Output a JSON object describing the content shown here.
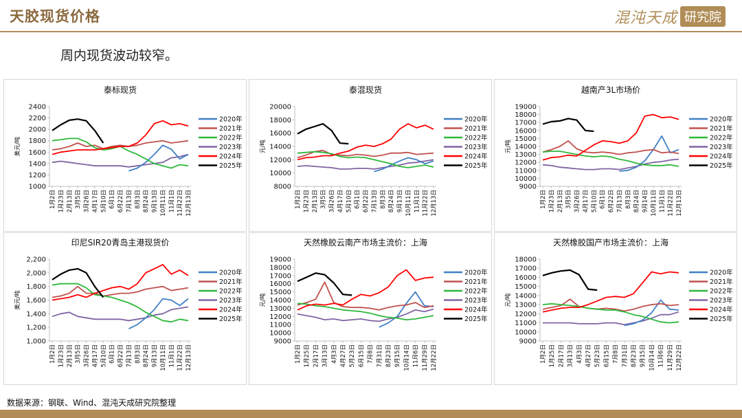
{
  "header": {
    "title": "天胶现货价格",
    "logo_script": "混沌天成",
    "logo_box": "研究院"
  },
  "subtitle": "周内现货波动较窄。",
  "source": "数据来源：钢联、Wind、混沌天成研究院整理",
  "colors": {
    "gold": "#b08d57",
    "2020": "#3f7fc4",
    "2021": "#c0504d",
    "2022": "#2db83a",
    "2023": "#8064a2",
    "2024": "#ff0000",
    "2025": "#000000"
  },
  "chart_data": [
    {
      "type": "line",
      "title": "泰标现货",
      "ylabel": "美元/吨",
      "ylim": [
        1000,
        2400
      ],
      "yticks": [
        "1000",
        "1200",
        "1400",
        "1600",
        "1800",
        "2000",
        "2200",
        "2400"
      ],
      "categories": [
        "1月2日",
        "1月23日",
        "2月13日",
        "3月5日",
        "3月26日",
        "4月17日",
        "5月10日",
        "6月1日",
        "6月22日",
        "7月13日",
        "8月3日",
        "8月24日",
        "9月13日",
        "10月11日",
        "11月1日",
        "11月22日",
        "12月13日"
      ],
      "series": [
        {
          "name": "2020年",
          "values": [
            null,
            null,
            null,
            null,
            null,
            null,
            null,
            null,
            null,
            1270,
            1320,
            1420,
            1560,
            1720,
            1650,
            1480,
            1560
          ]
        },
        {
          "name": "2021年",
          "values": [
            1640,
            1660,
            1700,
            1760,
            1700,
            1720,
            1660,
            1700,
            1720,
            1700,
            1720,
            1760,
            1780,
            1800,
            1760,
            1780,
            1800
          ]
        },
        {
          "name": "2022年",
          "values": [
            1800,
            1820,
            1840,
            1840,
            1780,
            1680,
            1640,
            1660,
            1700,
            1620,
            1560,
            1480,
            1400,
            1360,
            1320,
            1380,
            1360
          ]
        },
        {
          "name": "2023年",
          "values": [
            1420,
            1440,
            1420,
            1400,
            1380,
            1360,
            1360,
            1360,
            1360,
            1340,
            1360,
            1380,
            1400,
            1420,
            1500,
            1520,
            1560
          ]
        },
        {
          "name": "2024年",
          "values": [
            1560,
            1600,
            1620,
            1640,
            1640,
            1640,
            1660,
            1680,
            1700,
            1700,
            1760,
            1900,
            2100,
            2150,
            2080,
            2100,
            2060
          ]
        },
        {
          "name": "2025年",
          "values": [
            1980,
            2080,
            2160,
            2180,
            2150,
            1980,
            1760,
            null,
            null,
            null,
            null,
            null,
            null,
            null,
            null,
            null,
            null
          ]
        }
      ]
    },
    {
      "type": "line",
      "title": "泰混现货",
      "ylabel": "元/吨",
      "ylim": [
        8000,
        20000
      ],
      "yticks": [
        "8000",
        "10000",
        "12000",
        "14000",
        "16000",
        "18000",
        "20000"
      ],
      "categories": [
        "1月2日",
        "1月23日",
        "2月13日",
        "3月5日",
        "3月26日",
        "4月17日",
        "5月10日",
        "6月1日",
        "6月22日",
        "7月13日",
        "8月3日",
        "8月24日",
        "9月13日",
        "10月11日",
        "11月1日",
        "11月22日",
        "12月13日"
      ],
      "series": [
        {
          "name": "2020年",
          "values": [
            null,
            null,
            null,
            null,
            null,
            null,
            null,
            null,
            null,
            10200,
            10600,
            11200,
            11800,
            12300,
            12000,
            11400,
            11800
          ]
        },
        {
          "name": "2021年",
          "values": [
            12300,
            12700,
            13200,
            13400,
            12800,
            12700,
            12600,
            12800,
            12700,
            12500,
            12700,
            13000,
            13000,
            13100,
            12800,
            12900,
            13000
          ]
        },
        {
          "name": "2022年",
          "values": [
            13000,
            13100,
            13200,
            13100,
            12900,
            12500,
            12300,
            12400,
            12300,
            12000,
            11700,
            11400,
            11000,
            10800,
            11000,
            11200,
            10900
          ]
        },
        {
          "name": "2023年",
          "values": [
            11000,
            11100,
            11000,
            10900,
            10800,
            10600,
            10600,
            10700,
            10700,
            10600,
            10800,
            11000,
            11200,
            11500,
            11600,
            11800,
            12000
          ]
        },
        {
          "name": "2024年",
          "values": [
            12000,
            12300,
            12400,
            12600,
            12600,
            13000,
            13300,
            13900,
            14200,
            14000,
            14400,
            15100,
            16600,
            17400,
            16800,
            17200,
            16600
          ]
        },
        {
          "name": "2025年",
          "values": [
            15900,
            16600,
            17000,
            17400,
            16400,
            14500,
            14400,
            null,
            null,
            null,
            null,
            null,
            null,
            null,
            null,
            null,
            null
          ]
        }
      ]
    },
    {
      "type": "line",
      "title": "越南产3L市场价",
      "ylabel": "元/吨",
      "ylim": [
        9000,
        19000
      ],
      "yticks": [
        "9000",
        "10000",
        "11000",
        "12000",
        "13000",
        "14000",
        "15000",
        "16000",
        "17000",
        "18000",
        "19000"
      ],
      "categories": [
        "1月2日",
        "1月23日",
        "2月13日",
        "3月5日",
        "3月26日",
        "4月17日",
        "5月10日",
        "6月1日",
        "6月22日",
        "7月13日",
        "8月3日",
        "8月24日",
        "9月14日",
        "10月11日",
        "11月1日",
        "11月22日",
        "12月13日"
      ],
      "series": [
        {
          "name": "2020年",
          "values": [
            null,
            null,
            null,
            null,
            null,
            null,
            null,
            null,
            null,
            10900,
            11000,
            11400,
            12200,
            13600,
            15300,
            13200,
            13600
          ]
        },
        {
          "name": "2021年",
          "values": [
            13300,
            13600,
            14000,
            14700,
            13700,
            13300,
            13200,
            13300,
            13200,
            13000,
            13200,
            13300,
            13500,
            13600,
            13200,
            13300,
            13100
          ]
        },
        {
          "name": "2022年",
          "values": [
            13300,
            13400,
            13400,
            13200,
            13000,
            12800,
            12700,
            12800,
            12700,
            12400,
            12200,
            11900,
            11700,
            11600,
            11600,
            11700,
            11500
          ]
        },
        {
          "name": "2023年",
          "values": [
            11700,
            11600,
            11400,
            11300,
            11200,
            11100,
            11100,
            11200,
            11200,
            11100,
            11300,
            11500,
            11800,
            12000,
            12100,
            12300,
            12400
          ]
        },
        {
          "name": "2024年",
          "values": [
            12300,
            12600,
            12700,
            12900,
            12800,
            13500,
            14200,
            14700,
            14600,
            14400,
            14700,
            15700,
            17800,
            18000,
            17600,
            17700,
            17400
          ]
        },
        {
          "name": "2025年",
          "values": [
            16800,
            17100,
            17200,
            17500,
            17300,
            16000,
            15900,
            null,
            null,
            null,
            null,
            null,
            null,
            null,
            null,
            null,
            null
          ]
        }
      ]
    },
    {
      "type": "line",
      "title": "印尼SIR20青岛主港现货价",
      "ylabel": "美元/吨",
      "ylim": [
        1000,
        2200
      ],
      "yticks": [
        "1,000",
        "1,200",
        "1,400",
        "1,600",
        "1,800",
        "2,000",
        "2,200"
      ],
      "categories": [
        "1月2日",
        "1月23日",
        "2月13日",
        "3月5日",
        "3月26日",
        "4月17日",
        "5月10日",
        "6月1日",
        "6月22日",
        "7月13日",
        "8月3日",
        "8月24日",
        "9月13日",
        "10月11日",
        "11月1日",
        "11月22日",
        "12月13日"
      ],
      "series": [
        {
          "name": "2020年",
          "values": [
            null,
            null,
            null,
            null,
            null,
            null,
            null,
            null,
            null,
            1180,
            1240,
            1340,
            1460,
            1620,
            1600,
            1520,
            1620
          ]
        },
        {
          "name": "2021年",
          "values": [
            1640,
            1660,
            1700,
            1800,
            1700,
            1700,
            1660,
            1680,
            1700,
            1700,
            1720,
            1760,
            1780,
            1800,
            1740,
            1760,
            1780
          ]
        },
        {
          "name": "2022年",
          "values": [
            1820,
            1840,
            1840,
            1840,
            1780,
            1680,
            1660,
            1640,
            1600,
            1560,
            1500,
            1420,
            1360,
            1300,
            1280,
            1320,
            1300
          ]
        },
        {
          "name": "2023年",
          "values": [
            1360,
            1400,
            1420,
            1360,
            1340,
            1320,
            1320,
            1320,
            1320,
            1300,
            1320,
            1340,
            1380,
            1400,
            1460,
            1480,
            1500
          ]
        },
        {
          "name": "2024年",
          "values": [
            1600,
            1620,
            1640,
            1680,
            1640,
            1700,
            1740,
            1780,
            1800,
            1760,
            1840,
            2000,
            2060,
            2120,
            1980,
            2040,
            1960
          ]
        },
        {
          "name": "2025年",
          "values": [
            1900,
            1980,
            2040,
            2060,
            2000,
            1800,
            1640,
            null,
            null,
            null,
            null,
            null,
            null,
            null,
            null,
            null,
            null
          ]
        }
      ]
    },
    {
      "type": "line",
      "title": "天然橡胶云南产市场主流价：上海",
      "ylabel": "元/吨",
      "ylim": [
        9000,
        19000
      ],
      "yticks": [
        "9000",
        "10000",
        "11000",
        "12000",
        "13000",
        "14000",
        "15000",
        "16000",
        "17000",
        "18000",
        "19000"
      ],
      "categories": [
        "1月2日",
        "1月25日",
        "2月17日",
        "3月13日",
        "4月3日",
        "4月27日",
        "5月23日",
        "6月15日",
        "7月8日",
        "7月31日",
        "8月23日",
        "9月15日",
        "10月14日",
        "11月6日",
        "11月29日",
        "12月22日"
      ],
      "series": [
        {
          "name": "2020年",
          "values": [
            null,
            null,
            null,
            null,
            null,
            null,
            null,
            null,
            null,
            10700,
            11200,
            12000,
            13600,
            15000,
            13300,
            13200
          ]
        },
        {
          "name": "2021年",
          "values": [
            13400,
            13700,
            14100,
            16200,
            13700,
            13200,
            13100,
            13100,
            13000,
            12800,
            13100,
            13300,
            13400,
            13700,
            13100,
            13300
          ]
        },
        {
          "name": "2022年",
          "values": [
            13600,
            13500,
            13300,
            13200,
            13000,
            12800,
            12700,
            12600,
            12400,
            12100,
            11900,
            11800,
            11600,
            11700,
            11900,
            12100
          ]
        },
        {
          "name": "2023年",
          "values": [
            12300,
            12100,
            11900,
            11600,
            11700,
            11500,
            11600,
            11700,
            11500,
            11400,
            11700,
            11900,
            12300,
            12800,
            12600,
            12900
          ]
        },
        {
          "name": "2024年",
          "values": [
            12800,
            13300,
            13500,
            13400,
            13600,
            13400,
            14100,
            14700,
            14500,
            14900,
            15600,
            17000,
            17700,
            16400,
            16700,
            16800
          ]
        },
        {
          "name": "2025年",
          "values": [
            16300,
            16800,
            17300,
            17100,
            16100,
            14700,
            14600,
            null,
            null,
            null,
            null,
            null,
            null,
            null,
            null,
            null
          ]
        }
      ]
    },
    {
      "type": "line",
      "title": "天然橡胶国产市场主流价：上海",
      "ylabel": "元/吨",
      "ylim": [
        9000,
        18000
      ],
      "yticks": [
        "9000",
        "10000",
        "11000",
        "12000",
        "13000",
        "14000",
        "15000",
        "16000",
        "17000",
        "18000"
      ],
      "categories": [
        "1月2日",
        "1月25日",
        "2月17日",
        "3月13日",
        "4月3日",
        "4月27日",
        "5月23日",
        "6月15日",
        "7月8日",
        "7月31日",
        "8月23日",
        "9月15日",
        "10月14日",
        "11月6日",
        "11月29日",
        "12月22日"
      ],
      "series": [
        {
          "name": "2020年",
          "values": [
            null,
            null,
            null,
            null,
            null,
            null,
            null,
            null,
            null,
            10700,
            10900,
            11300,
            12100,
            13500,
            12500,
            12400
          ]
        },
        {
          "name": "2021年",
          "values": [
            12500,
            12700,
            12900,
            13600,
            12800,
            12600,
            12500,
            12600,
            12500,
            12300,
            12500,
            12800,
            13000,
            13100,
            12900,
            13000
          ]
        },
        {
          "name": "2022年",
          "values": [
            13000,
            13100,
            13000,
            12900,
            12800,
            12600,
            12500,
            12400,
            12400,
            12200,
            11900,
            11700,
            11400,
            11100,
            11000,
            11100
          ]
        },
        {
          "name": "2023年",
          "values": [
            11000,
            11000,
            11000,
            11000,
            10900,
            10900,
            10900,
            11000,
            11000,
            10800,
            11000,
            11200,
            11500,
            11900,
            11900,
            12200
          ]
        },
        {
          "name": "2024年",
          "values": [
            12200,
            12400,
            12600,
            12700,
            12700,
            13000,
            13400,
            13800,
            13900,
            13800,
            14200,
            15400,
            16600,
            16400,
            16600,
            16500
          ]
        },
        {
          "name": "2025年",
          "values": [
            16200,
            16500,
            16700,
            16800,
            16300,
            14700,
            14600,
            null,
            null,
            null,
            null,
            null,
            null,
            null,
            null,
            null
          ]
        }
      ]
    }
  ]
}
